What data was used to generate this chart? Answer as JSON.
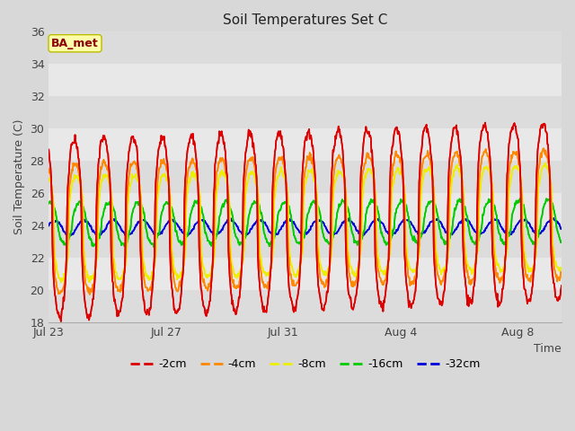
{
  "title": "Soil Temperatures Set C",
  "xlabel": "Time",
  "ylabel": "Soil Temperature (C)",
  "ylim": [
    18,
    36
  ],
  "yticks": [
    18,
    20,
    22,
    24,
    26,
    28,
    30,
    32,
    34,
    36
  ],
  "x_tick_labels": [
    "Jul 23",
    "Jul 27",
    "Jul 31",
    "Aug 4",
    "Aug 8"
  ],
  "x_tick_positions": [
    0,
    4,
    8,
    12,
    16
  ],
  "annotation_text": "BA_met",
  "legend_labels": [
    "-2cm",
    "-4cm",
    "-8cm",
    "-16cm",
    "-32cm"
  ],
  "legend_colors": [
    "#dd0000",
    "#ff8800",
    "#eeee00",
    "#00cc00",
    "#0000dd"
  ],
  "n_days": 17.5,
  "pts_per_day": 48,
  "fig_facecolor": "#d8d8d8",
  "ax_facecolor": "#e8e8e8",
  "grid_color": "#ffffff",
  "figsize": [
    6.4,
    4.8
  ],
  "dpi": 100
}
